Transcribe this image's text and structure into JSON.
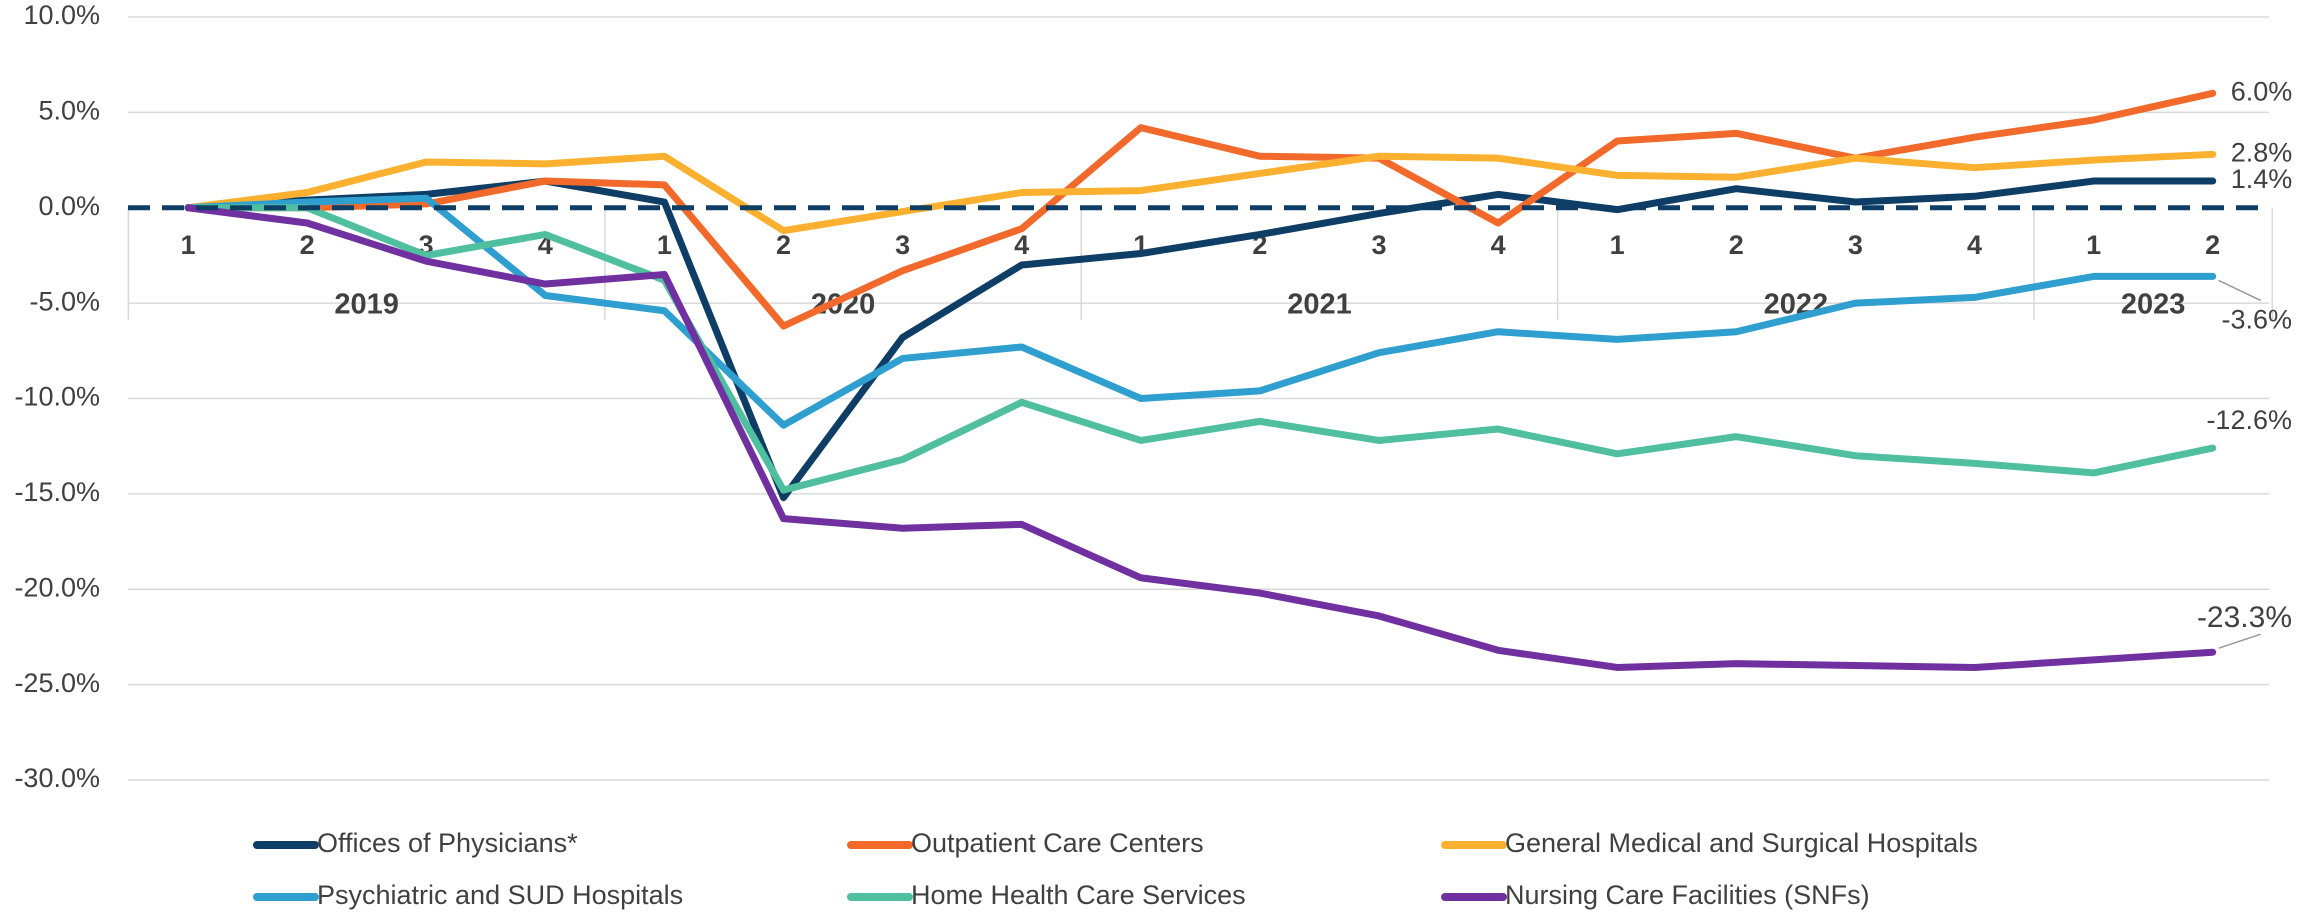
{
  "chart_data": {
    "type": "line",
    "categories": [
      "1",
      "2",
      "3",
      "4",
      "1",
      "2",
      "3",
      "4",
      "1",
      "2",
      "3",
      "4",
      "1",
      "2",
      "3",
      "4",
      "1",
      "2"
    ],
    "x_groups": [
      "2019",
      "2020",
      "2021",
      "2022",
      "2023"
    ],
    "ylim": [
      -30,
      10
    ],
    "yticks": [
      {
        "value": 10,
        "label": "10.0%"
      },
      {
        "value": 5,
        "label": "5.0%"
      },
      {
        "value": 0,
        "label": "0.0%"
      },
      {
        "value": -5,
        "label": "-5.0%"
      },
      {
        "value": -10,
        "label": "-10.0%"
      },
      {
        "value": -15,
        "label": "-15.0%"
      },
      {
        "value": -20,
        "label": "-20.0%"
      },
      {
        "value": -25,
        "label": "-25.0%"
      },
      {
        "value": -30,
        "label": "-30.0%"
      }
    ],
    "grid": true,
    "series": [
      {
        "name": "Offices of Physicians*",
        "color": "#0e3d66",
        "end_label": "1.4%",
        "values": [
          0,
          0.4,
          0.7,
          1.4,
          0.3,
          -15.2,
          -6.8,
          -3.0,
          -2.4,
          -1.4,
          -0.3,
          0.7,
          -0.1,
          1.0,
          0.3,
          0.6,
          1.4,
          1.4
        ]
      },
      {
        "name": "Outpatient Care Centers",
        "color": "#f26a2b",
        "end_label": "6.0%",
        "values": [
          0,
          0,
          0.2,
          1.4,
          1.2,
          -6.2,
          -3.3,
          -1.1,
          4.2,
          2.7,
          2.6,
          -0.8,
          3.5,
          3.9,
          2.6,
          3.7,
          4.6,
          6.0
        ]
      },
      {
        "name": "General Medical and Surgical Hospitals",
        "color": "#fbb12f",
        "end_label": "2.8%",
        "values": [
          0,
          0.8,
          2.4,
          2.3,
          2.7,
          -1.2,
          -0.2,
          0.8,
          0.9,
          1.8,
          2.7,
          2.6,
          1.7,
          1.6,
          2.6,
          2.1,
          2.5,
          2.8
        ]
      },
      {
        "name": "Psychiatric and SUD Hospitals",
        "color": "#2f9fd0",
        "end_label": "-3.6%",
        "values": [
          0,
          0.3,
          0.5,
          -4.6,
          -5.4,
          -11.4,
          -7.9,
          -7.3,
          -10.0,
          -9.6,
          -7.6,
          -6.5,
          -6.9,
          -6.5,
          -5.0,
          -4.7,
          -3.6,
          -3.6
        ]
      },
      {
        "name": "Home Health Care Services",
        "color": "#4fbfa0",
        "end_label": "-12.6%",
        "values": [
          0,
          0,
          -2.5,
          -1.4,
          -3.8,
          -14.8,
          -13.2,
          -10.2,
          -12.2,
          -11.2,
          -12.2,
          -11.6,
          -12.9,
          -12.0,
          -13.0,
          -13.4,
          -13.9,
          -12.6
        ]
      },
      {
        "name": "Nursing Care Facilities (SNFs)",
        "color": "#7030a0",
        "end_label": "-23.3%",
        "values": [
          0,
          -0.8,
          -2.8,
          -4.0,
          -3.5,
          -16.3,
          -16.8,
          -16.6,
          -19.4,
          -20.2,
          -21.4,
          -23.2,
          -24.1,
          -23.9,
          -24.0,
          -24.1,
          -23.7,
          -23.3
        ]
      }
    ]
  }
}
